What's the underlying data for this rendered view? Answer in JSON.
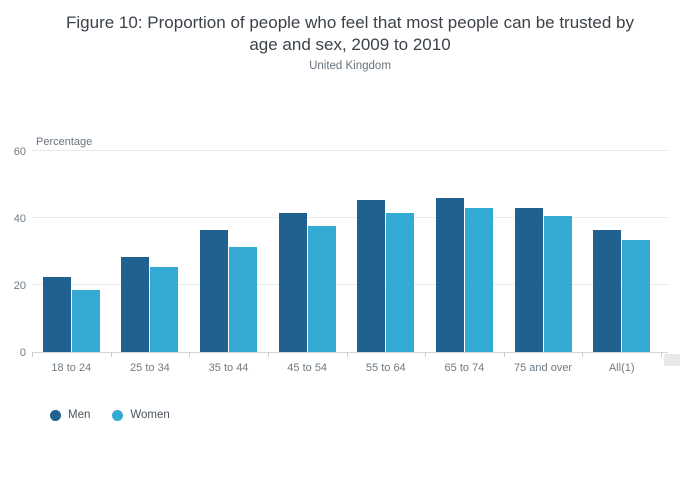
{
  "title": "Figure 10: Proportion of people who feel that most people can be trusted by age and sex, 2009 to 2010",
  "subtitle": "United Kingdom",
  "chart_data": {
    "type": "bar",
    "title": "Figure 10: Proportion of people who feel that most people can be trusted by age and sex, 2009 to 2010",
    "subtitle": "United Kingdom",
    "ylabel": "Percentage",
    "xlabel": "",
    "ylim": [
      0,
      60
    ],
    "yticks": [
      0,
      20,
      40,
      60
    ],
    "grid": true,
    "legend_position": "bottom-left",
    "categories": [
      "18 to 24",
      "25 to 34",
      "35 to 44",
      "45 to 54",
      "55 to 64",
      "65 to 74",
      "75 and over",
      "All(1)"
    ],
    "series": [
      {
        "name": "Men",
        "color": "#20618f",
        "values": [
          22.5,
          28.5,
          36.5,
          41.5,
          45.5,
          46.0,
          43.0,
          36.5
        ]
      },
      {
        "name": "Women",
        "color": "#33a9d4",
        "values": [
          18.5,
          25.5,
          31.5,
          37.5,
          41.5,
          43.0,
          40.5,
          33.5
        ]
      }
    ]
  },
  "colors": {
    "men": "#20618f",
    "women": "#33a9d4",
    "gridline": "#e8eaec",
    "axis_text": "#6f7b85"
  }
}
